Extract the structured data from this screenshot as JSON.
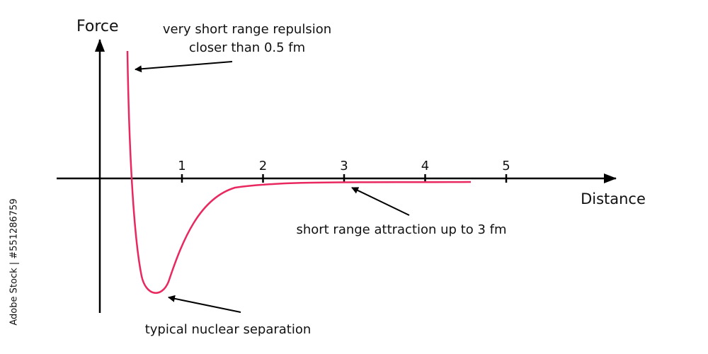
{
  "axes": {
    "y_label": "Force",
    "x_label": "Distance",
    "x_ticks": [
      1,
      2,
      3,
      4,
      5
    ]
  },
  "annotations": {
    "repulsion": [
      "very short range repulsion",
      "closer than 0.5 fm"
    ],
    "attraction": "short range attraction up to 3 fm",
    "separation": "typical nuclear separation"
  },
  "watermark": "Adobe Stock | #551286759"
}
